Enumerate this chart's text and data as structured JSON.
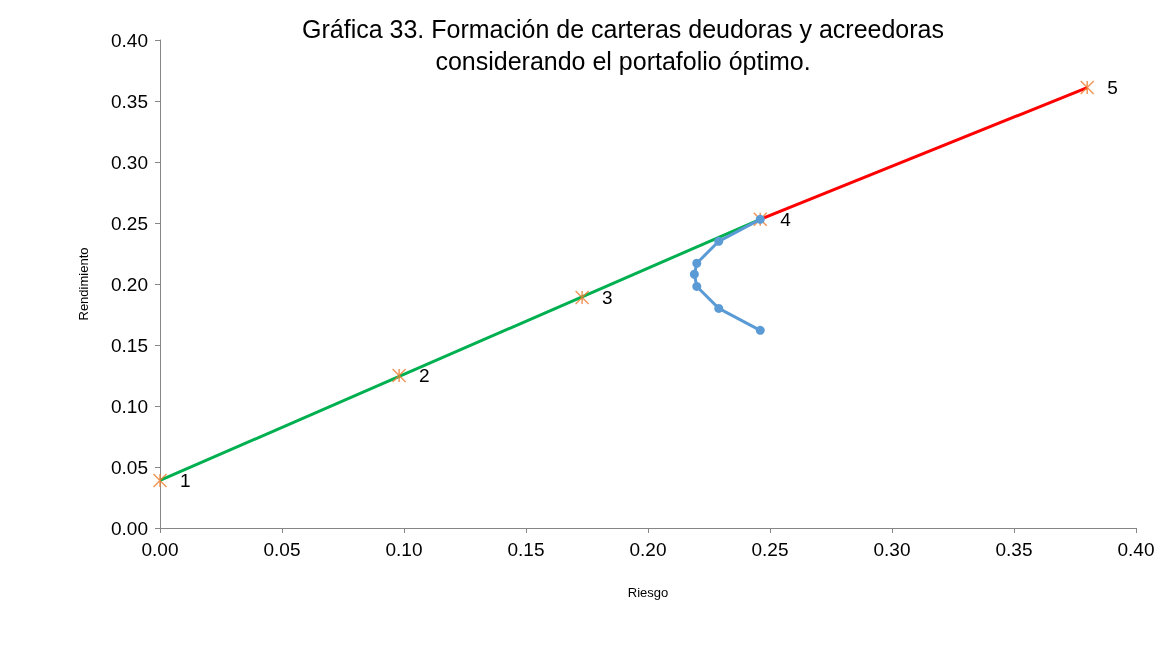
{
  "chart_data": {
    "type": "line",
    "title": "Gráfica 33. Formación de carteras deudoras y acreedoras\nconsiderando el portafolio óptimo.",
    "xlabel": "Riesgo",
    "ylabel": "Rendimiento",
    "xlim": [
      0,
      0.4
    ],
    "xticks": [
      {
        "value": 0,
        "label": "0.00"
      },
      {
        "value": 0.05,
        "label": "0.05"
      },
      {
        "value": 0.1,
        "label": "0.10"
      },
      {
        "value": 0.15,
        "label": "0.15"
      },
      {
        "value": 0.2,
        "label": "0.20"
      },
      {
        "value": 0.25,
        "label": "0.25"
      },
      {
        "value": 0.3,
        "label": "0.30"
      },
      {
        "value": 0.35,
        "label": "0.35"
      },
      {
        "value": 0.4,
        "label": "0.40"
      }
    ],
    "ylim": [
      0,
      0.4
    ],
    "yticks": [
      {
        "value": 0,
        "label": "0.00"
      },
      {
        "value": 0.05,
        "label": "0.05"
      },
      {
        "value": 0.1,
        "label": "0.10"
      },
      {
        "value": 0.15,
        "label": "0.15"
      },
      {
        "value": 0.2,
        "label": "0.20"
      },
      {
        "value": 0.25,
        "label": "0.25"
      },
      {
        "value": 0.3,
        "label": "0.30"
      },
      {
        "value": 0.35,
        "label": "0.35"
      },
      {
        "value": 0.4,
        "label": "0.40"
      }
    ],
    "grid": false,
    "annotations": [
      {
        "text": "1",
        "x": 0,
        "y": 0.039
      },
      {
        "text": "2",
        "x": 0.098,
        "y": 0.125
      },
      {
        "text": "3",
        "x": 0.173,
        "y": 0.189
      },
      {
        "text": "4",
        "x": 0.246,
        "y": 0.253
      },
      {
        "text": "5",
        "x": 0.38,
        "y": 0.361
      }
    ],
    "series": [
      {
        "color": "#00b050",
        "marker": "none",
        "x": [
          0,
          0.246
        ],
        "values": [
          0.039,
          0.253
        ]
      },
      {
        "color": "#ff0000",
        "marker": "none",
        "x": [
          0.246,
          0.38
        ],
        "values": [
          0.253,
          0.361
        ]
      },
      {
        "type": "scatter",
        "color": "#ed7d31",
        "marker": "cross",
        "x": [
          0,
          0.098,
          0.173,
          0.246,
          0.38
        ],
        "values": [
          0.039,
          0.125,
          0.189,
          0.253,
          0.361
        ]
      },
      {
        "color": "#5b9bd5",
        "marker": "circle",
        "x": [
          0.246,
          0.229,
          0.22,
          0.219,
          0.22,
          0.229,
          0.246
        ],
        "values": [
          0.253,
          0.235,
          0.217,
          0.208,
          0.198,
          0.18,
          0.162
        ]
      }
    ]
  }
}
